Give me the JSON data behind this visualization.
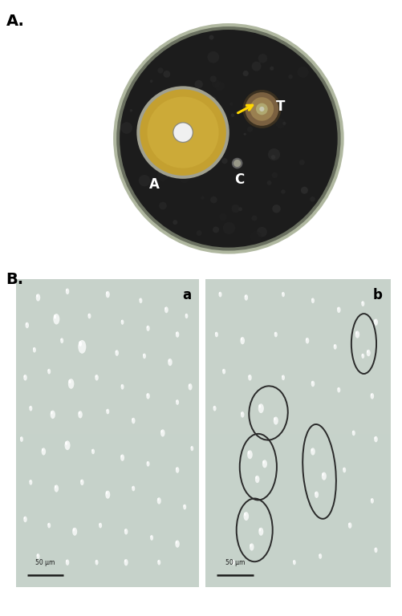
{
  "panel_A_label": "A.",
  "panel_B_label": "B.",
  "sub_label_a": "a",
  "sub_label_b": "b",
  "label_A_text": "A",
  "label_T_text": "T",
  "label_C_text": "C",
  "background_color": "#ffffff",
  "label_fontsize": 14,
  "sublabel_fontsize": 12,
  "scale_bar_text": "50 μm",
  "arrow_color": "#FFD700",
  "circle_color": "#2a2a2a",
  "micro_bg": "#c8d4cc",
  "spore_edge": "#8899aa",
  "spore_fill": "#ddeedd"
}
